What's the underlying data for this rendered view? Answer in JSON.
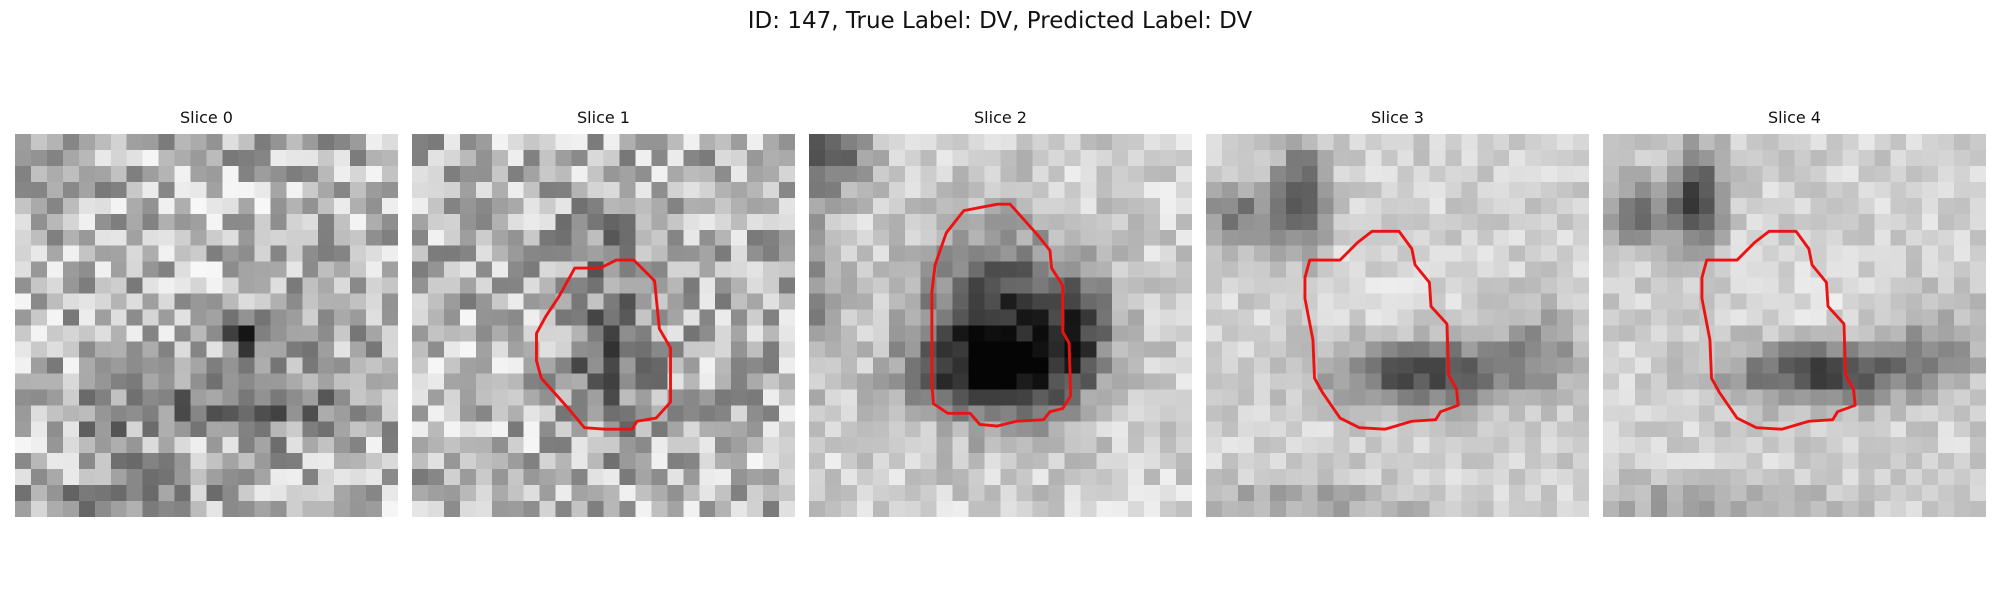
{
  "figure": {
    "title": "ID: 147, True Label: DV, Predicted Label: DV"
  },
  "slices": [
    {
      "title": "Slice 0",
      "has_contour": false
    },
    {
      "title": "Slice 1",
      "has_contour": true
    },
    {
      "title": "Slice 2",
      "has_contour": true
    },
    {
      "title": "Slice 3",
      "has_contour": true
    },
    {
      "title": "Slice 4",
      "has_contour": true
    }
  ],
  "colors": {
    "contour": "#ee1111",
    "background": "#ffffff"
  }
}
